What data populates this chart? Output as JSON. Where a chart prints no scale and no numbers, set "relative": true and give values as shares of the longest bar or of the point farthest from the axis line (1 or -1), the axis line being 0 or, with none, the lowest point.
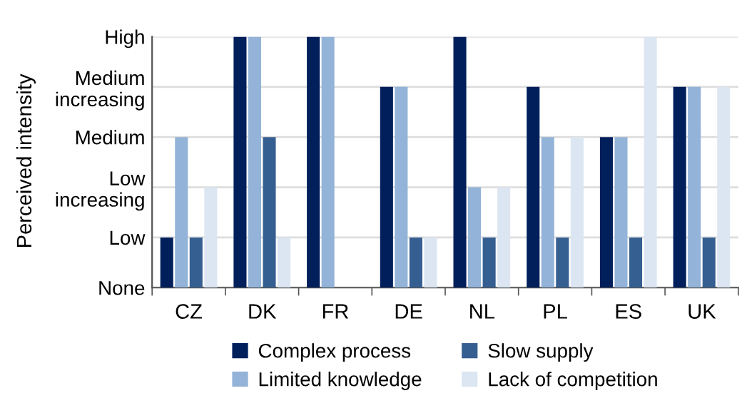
{
  "chart_data": {
    "type": "bar",
    "relative": true,
    "categories": [
      "CZ",
      "DK",
      "FR",
      "DE",
      "NL",
      "PL",
      "ES",
      "UK"
    ],
    "series": [
      {
        "name": "Complex process",
        "color": "#001f5b",
        "values": [
          0.2,
          1,
          1,
          0.8,
          1,
          0.8,
          0.6,
          0.8
        ]
      },
      {
        "name": "Limited knowledge",
        "color": "#93b3d8",
        "values": [
          0.6,
          1,
          1,
          0.8,
          0.4,
          0.6,
          0.6,
          0.8
        ]
      },
      {
        "name": "Slow supply",
        "color": "#365f91",
        "values": [
          0.2,
          0.6,
          0,
          0.2,
          0.2,
          0.2,
          0.2,
          0.2
        ]
      },
      {
        "name": "Lack of competition",
        "color": "#dce6f2",
        "values": [
          0.4,
          0.2,
          0,
          0.2,
          0.4,
          0.6,
          1,
          0.8
        ]
      }
    ],
    "annotations": [
      "Perceived intensity",
      "None",
      "Low",
      "Low\nincreasing",
      "Medium",
      "Medium\nincreasing",
      "High"
    ],
    "grid": "y",
    "legend": "bottom"
  }
}
